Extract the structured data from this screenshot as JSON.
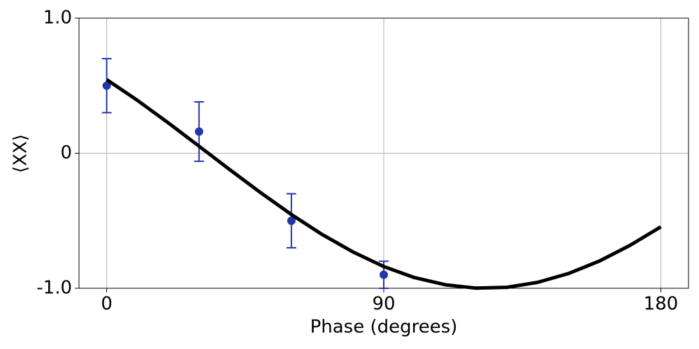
{
  "chart_data": {
    "type": "scatter",
    "xlabel": "Phase (degrees)",
    "ylabel": "⟨XX⟩",
    "xlim": [
      -9,
      189
    ],
    "ylim": [
      -1,
      1
    ],
    "xticks": [
      0,
      90,
      180
    ],
    "yticks": [
      {
        "value": 1,
        "label": "1.0"
      },
      0,
      {
        "value": -1,
        "label": "-1.0"
      }
    ],
    "grid": true,
    "series": [
      {
        "type": "scatter",
        "color": "#2236a8",
        "x": [
          0,
          30,
          60,
          90
        ],
        "values": [
          0.5,
          0.16,
          -0.5,
          -0.9
        ],
        "errors": [
          0.2,
          0.22,
          0.2,
          0.1
        ]
      },
      {
        "type": "line",
        "color": "#000000",
        "x": [
          0,
          10,
          20,
          30,
          40,
          50,
          60,
          70,
          80,
          90,
          100,
          110,
          120,
          130,
          140,
          150,
          160,
          170,
          180
        ],
        "values": [
          0.545,
          0.391,
          0.225,
          0.052,
          -0.122,
          -0.292,
          -0.454,
          -0.602,
          -0.731,
          -0.839,
          -0.921,
          -0.974,
          -0.999,
          -0.993,
          -0.956,
          -0.891,
          -0.799,
          -0.682,
          -0.545
        ]
      }
    ]
  }
}
